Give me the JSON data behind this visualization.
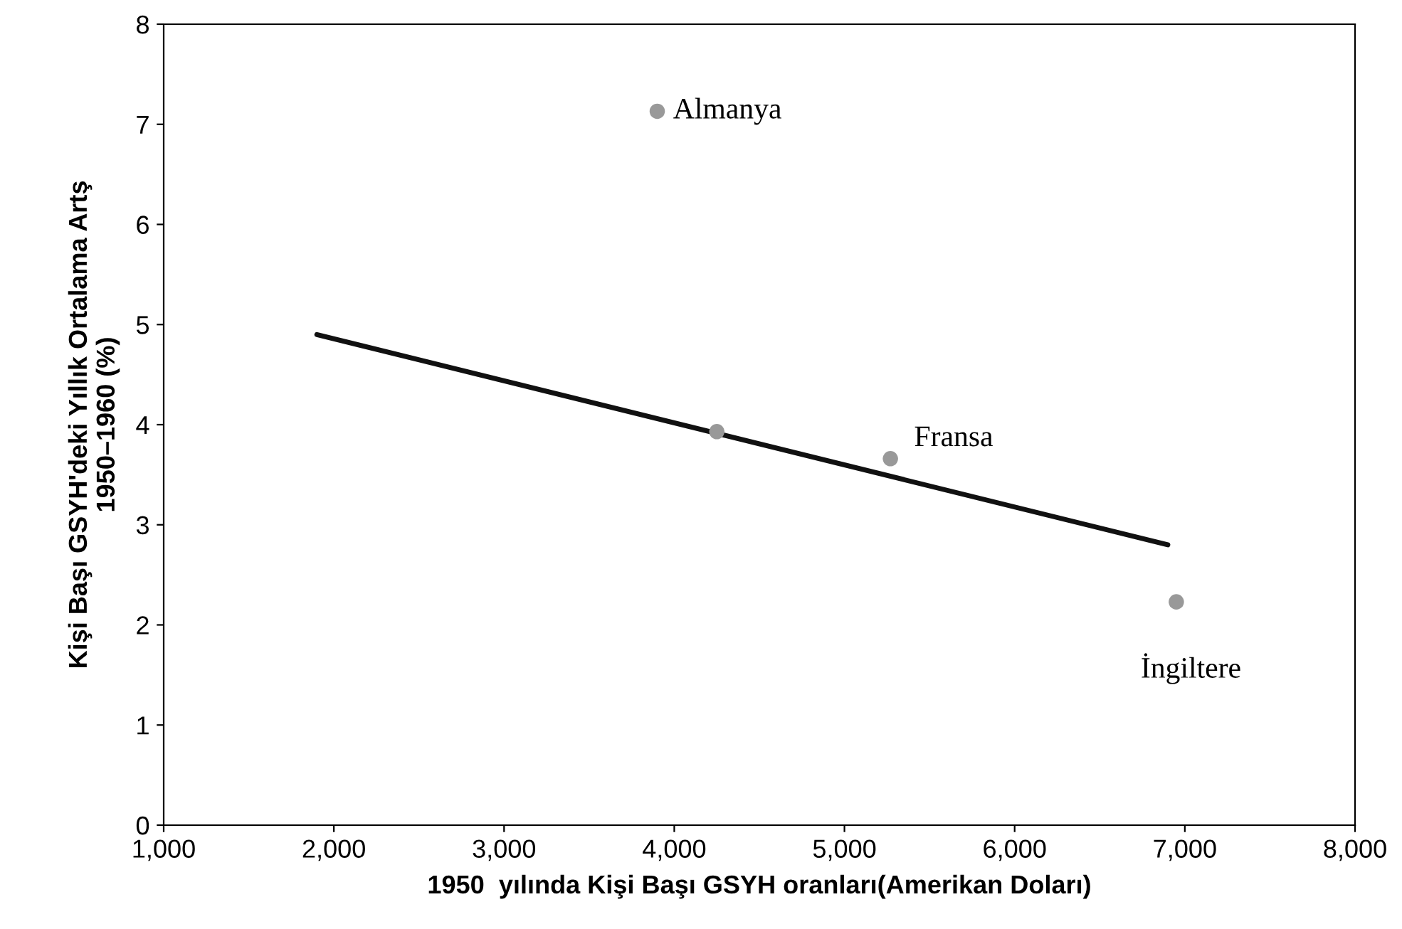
{
  "chart_data": {
    "type": "scatter",
    "xlabel": "1950  yılında Kişi Başı GSYH oranları(Amerikan Doları)",
    "ylabel": "Kişi Başı GSYH'deki Yıllık Ortalama Artş\n1950–1960 (%)",
    "series": [
      {
        "color": "#999999",
        "x": [
          3900,
          4250,
          5270,
          6950
        ],
        "values": [
          7.13,
          3.93,
          3.66,
          2.23
        ]
      },
      {
        "type": "line",
        "color": "#111111",
        "x": [
          1900,
          6900
        ],
        "values": [
          4.9,
          2.8
        ]
      }
    ],
    "annotations": [
      {
        "text": "Almanya",
        "x": 3900,
        "y": 7.13
      },
      {
        "text": "Fransa",
        "x": 5270,
        "y": 3.66
      },
      {
        "text": "İngiltere",
        "x": 6950,
        "y": 2.23
      }
    ],
    "xlim": [
      1000,
      8000
    ],
    "xticks": [
      {
        "value": 1000,
        "label": "1,000"
      },
      {
        "value": 2000,
        "label": "2,000"
      },
      {
        "value": 3000,
        "label": "3,000"
      },
      {
        "value": 4000,
        "label": "4,000"
      },
      {
        "value": 5000,
        "label": "5,000"
      },
      {
        "value": 6000,
        "label": "6,000"
      },
      {
        "value": 7000,
        "label": "7,000"
      },
      {
        "value": 8000,
        "label": "8,000"
      }
    ],
    "ylim": [
      0,
      8
    ],
    "yticks": [
      0,
      1,
      2,
      3,
      4,
      5,
      6,
      7,
      8
    ],
    "grid": false,
    "legend": false
  }
}
